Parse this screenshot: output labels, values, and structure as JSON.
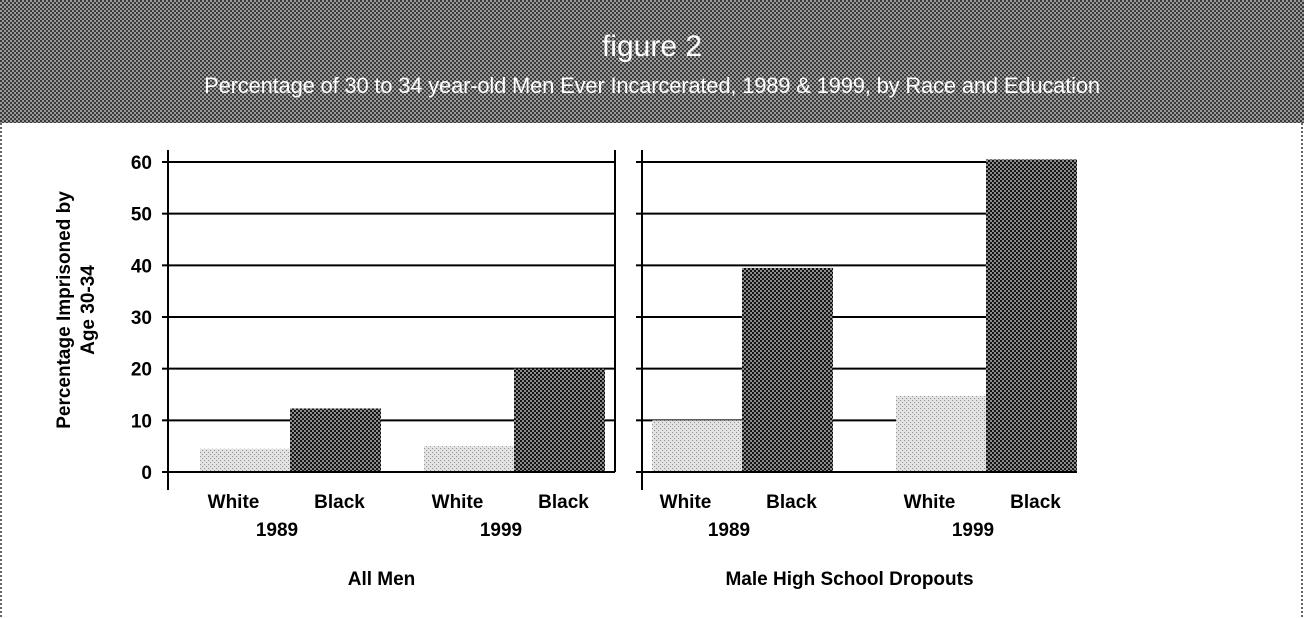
{
  "figure": {
    "number": "figure 2",
    "title": "Percentage of 30 to 34 year-old Men Ever Incarcerated, 1989 & 1999, by Race and Education"
  },
  "colors": {
    "banner_dark": "#3a3a3a",
    "banner_light": "#9a9a9a",
    "white_bar_light": "#e3e3e3",
    "white_bar_dark": "#8f8f8f",
    "black_bar_light": "#8c8c8c",
    "black_bar_dark": "#141414",
    "axis": "#000000"
  },
  "chart_data": {
    "type": "bar",
    "ylabel": [
      "Percentage Imprisoned by",
      "Age 30-34"
    ],
    "ylim": [
      0,
      60
    ],
    "yticks": [
      0,
      10,
      20,
      30,
      40,
      50,
      60
    ],
    "grid": true,
    "panels": [
      {
        "name": "All Men",
        "groups": [
          {
            "year": "1989",
            "bars": [
              {
                "race": "White",
                "value": 4.5
              },
              {
                "race": "Black",
                "value": 12.3
              }
            ]
          },
          {
            "year": "1999",
            "bars": [
              {
                "race": "White",
                "value": 5.0
              },
              {
                "race": "Black",
                "value": 20.0
              }
            ]
          }
        ]
      },
      {
        "name": "Male High School Dropouts",
        "groups": [
          {
            "year": "1989",
            "bars": [
              {
                "race": "White",
                "value": 10.0
              },
              {
                "race": "Black",
                "value": 39.5
              }
            ]
          },
          {
            "year": "1999",
            "bars": [
              {
                "race": "White",
                "value": 14.7
              },
              {
                "race": "Black",
                "value": 60.5
              }
            ]
          }
        ]
      }
    ]
  }
}
